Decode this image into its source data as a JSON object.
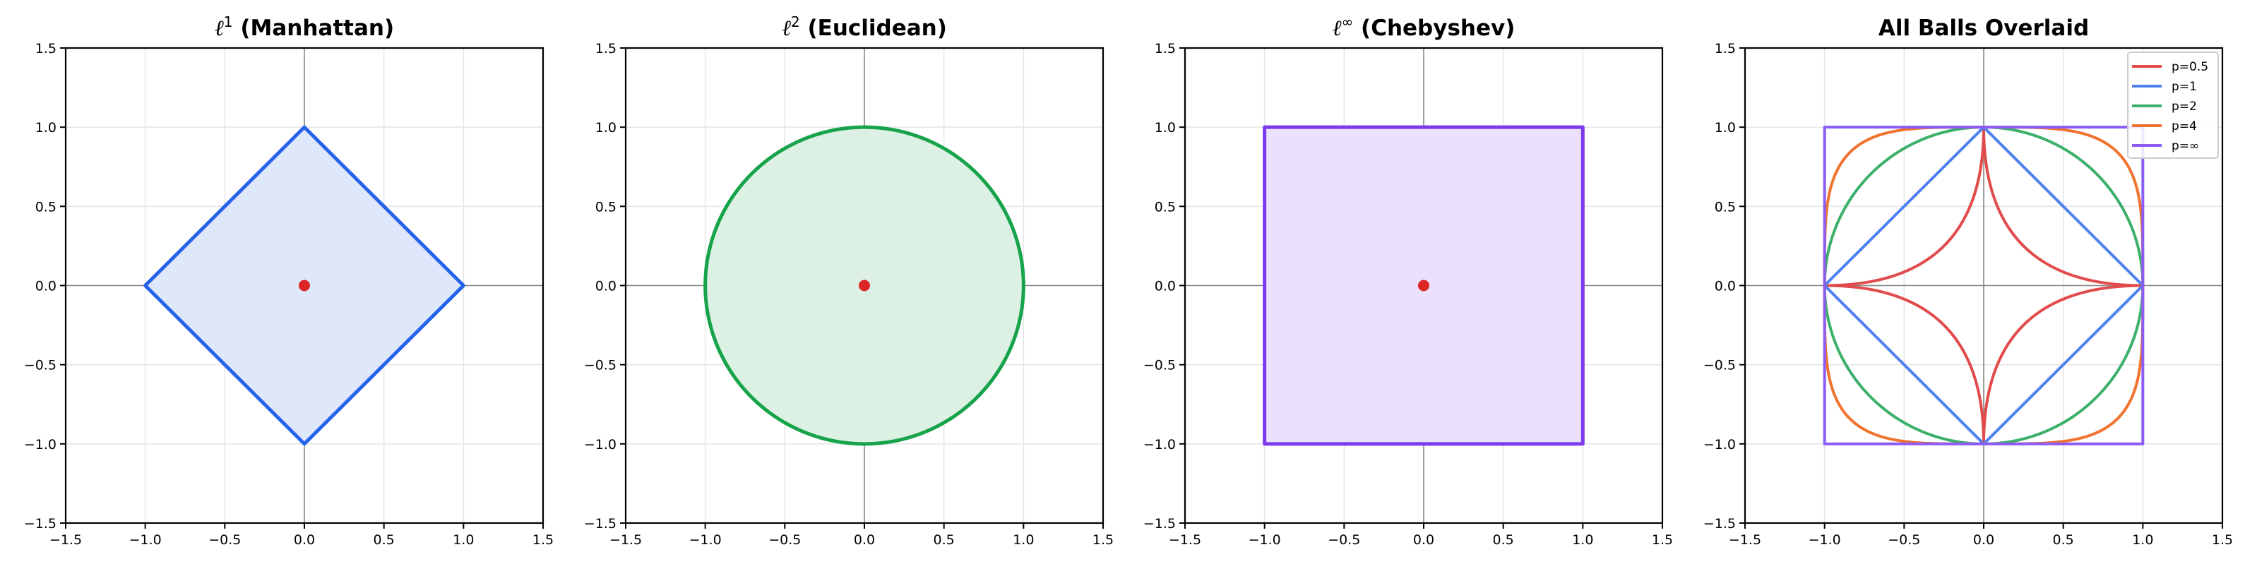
{
  "chart_data": [
    {
      "type": "area",
      "title_symbol": "ℓ",
      "title_sup": "1",
      "title_text": "(Manhattan)",
      "xlim": [
        -1.5,
        1.5
      ],
      "ylim": [
        -1.5,
        1.5
      ],
      "xticks": [
        "−1.5",
        "−1.0",
        "−0.5",
        "0.0",
        "0.5",
        "1.0",
        "1.5"
      ],
      "yticks": [
        "−1.5",
        "−1.0",
        "−0.5",
        "0.0",
        "0.5",
        "1.0",
        "1.5"
      ],
      "grid": true,
      "series": [
        {
          "p": 1,
          "color": "#2563eb",
          "fill": "#dfe7fb"
        }
      ],
      "center_point": {
        "x": 0,
        "y": 0,
        "color": "#dc2626"
      }
    },
    {
      "type": "area",
      "title_symbol": "ℓ",
      "title_sup": "2",
      "title_text": "(Euclidean)",
      "xlim": [
        -1.5,
        1.5
      ],
      "ylim": [
        -1.5,
        1.5
      ],
      "xticks": [
        "−1.5",
        "−1.0",
        "−0.5",
        "0.0",
        "0.5",
        "1.0",
        "1.5"
      ],
      "yticks": [
        "−1.5",
        "−1.0",
        "−0.5",
        "0.0",
        "0.5",
        "1.0",
        "1.5"
      ],
      "grid": true,
      "series": [
        {
          "p": 2,
          "color": "#16a34a",
          "fill": "#dcf0e3"
        }
      ],
      "center_point": {
        "x": 0,
        "y": 0,
        "color": "#dc2626"
      }
    },
    {
      "type": "area",
      "title_symbol": "ℓ",
      "title_sup": "∞",
      "title_text": "(Chebyshev)",
      "xlim": [
        -1.5,
        1.5
      ],
      "ylim": [
        -1.5,
        1.5
      ],
      "xticks": [
        "−1.5",
        "−1.0",
        "−0.5",
        "0.0",
        "0.5",
        "1.0",
        "1.5"
      ],
      "yticks": [
        "−1.5",
        "−1.0",
        "−0.5",
        "0.0",
        "0.5",
        "1.0",
        "1.5"
      ],
      "grid": true,
      "series": [
        {
          "p": "inf",
          "color": "#7c3aed",
          "fill": "#ebe1fc"
        }
      ],
      "center_point": {
        "x": 0,
        "y": 0,
        "color": "#dc2626"
      }
    },
    {
      "type": "line",
      "title_symbol": "",
      "title_sup": "",
      "title_text": "All Balls Overlaid",
      "xlim": [
        -1.5,
        1.5
      ],
      "ylim": [
        -1.5,
        1.5
      ],
      "xticks": [
        "−1.5",
        "−1.0",
        "−0.5",
        "0.0",
        "0.5",
        "1.0",
        "1.5"
      ],
      "yticks": [
        "−1.5",
        "−1.0",
        "−0.5",
        "0.0",
        "0.5",
        "1.0",
        "1.5"
      ],
      "grid": true,
      "legend_placement": "upper-right",
      "series": [
        {
          "name": "p=0.5",
          "p": 0.5,
          "color": "#e24b4b"
        },
        {
          "name": "p=1",
          "p": 1,
          "color": "#4f80ef"
        },
        {
          "name": "p=2",
          "p": 2,
          "color": "#3cb06a"
        },
        {
          "name": "p=4",
          "p": 4,
          "color": "#f0732f"
        },
        {
          "name": "p=∞",
          "p": "inf",
          "color": "#8b5cf6"
        }
      ]
    }
  ]
}
